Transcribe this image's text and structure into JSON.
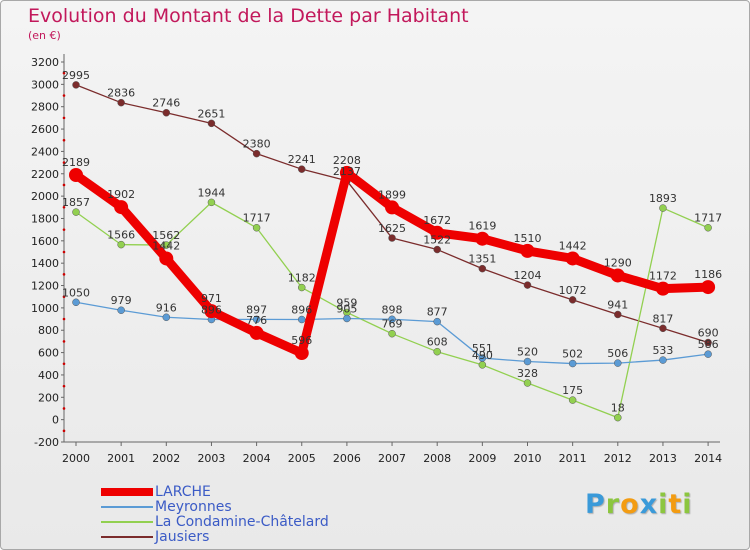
{
  "title": "Evolution du Montant de la Dette par Habitant",
  "subtitle": "(en €)",
  "logo": {
    "text": "Proxiti",
    "letters": [
      {
        "ch": "P",
        "color": "#3a9ad9"
      },
      {
        "ch": "r",
        "color": "#8cc63f"
      },
      {
        "ch": "o",
        "color": "#f39c12"
      },
      {
        "ch": "x",
        "color": "#3a9ad9"
      },
      {
        "ch": "i",
        "color": "#8cc63f"
      },
      {
        "ch": "t",
        "color": "#f39c12"
      },
      {
        "ch": "i",
        "color": "#8cc63f"
      }
    ]
  },
  "chart_data": {
    "type": "line",
    "categories": [
      "2000",
      "2001",
      "2002",
      "2003",
      "2004",
      "2005",
      "2006",
      "2007",
      "2008",
      "2009",
      "2010",
      "2011",
      "2012",
      "2013",
      "2014"
    ],
    "ylim": [
      -200,
      3200
    ],
    "yticks": [
      -200,
      0,
      200,
      400,
      600,
      800,
      1000,
      1200,
      1400,
      1600,
      1800,
      2000,
      2200,
      2400,
      2600,
      2800,
      3000,
      3200
    ],
    "grid": false,
    "legend_position": "bottom-left",
    "series": [
      {
        "name": "LARCHE",
        "color": "#ee0000",
        "width": 9,
        "marker": 7,
        "values": [
          2189,
          1902,
          1442,
          971,
          776,
          596,
          2208,
          1899,
          1672,
          1619,
          1510,
          1442,
          1290,
          1172,
          1186
        ],
        "labels": [
          "2189",
          "1902",
          "1442",
          "971",
          "776",
          "596",
          "2208",
          "1899",
          "1672",
          "1619",
          "1510",
          "1442",
          "1290",
          "1172",
          "1186"
        ]
      },
      {
        "name": "Meyronnes",
        "color": "#5b9bd5",
        "width": 1.3,
        "marker": 3.5,
        "values": [
          1050,
          979,
          916,
          896,
          897,
          896,
          905,
          898,
          877,
          551,
          520,
          502,
          506,
          533,
          586
        ],
        "labels": [
          "1050",
          "979",
          "916",
          "896",
          "897",
          "896",
          "905",
          "898",
          "877",
          "551",
          "520",
          "502",
          "506",
          "533",
          "586"
        ]
      },
      {
        "name": "La Condamine-Châtelard",
        "color": "#92d050",
        "width": 1.3,
        "marker": 3.5,
        "values": [
          1857,
          1566,
          1562,
          1944,
          1717,
          1182,
          959,
          769,
          608,
          490,
          328,
          175,
          18,
          1893,
          1717
        ],
        "labels": [
          "1857",
          "1566",
          "1562",
          "1944",
          "1717",
          "1182",
          "959",
          "769",
          "608",
          "490",
          "328",
          "175",
          "18",
          "1893",
          "1717"
        ]
      },
      {
        "name": "Jausiers",
        "color": "#7b2c2c",
        "width": 1.3,
        "marker": 3.5,
        "values": [
          2995,
          2836,
          2746,
          2651,
          2380,
          2241,
          2137,
          1625,
          1522,
          1351,
          1204,
          1072,
          941,
          817,
          690
        ],
        "labels": [
          "2995",
          "2836",
          "2746",
          "2651",
          "2380",
          "2241",
          "2137",
          "1625",
          "1522",
          "1351",
          "1204",
          "1072",
          "941",
          "817",
          "690"
        ]
      }
    ]
  }
}
